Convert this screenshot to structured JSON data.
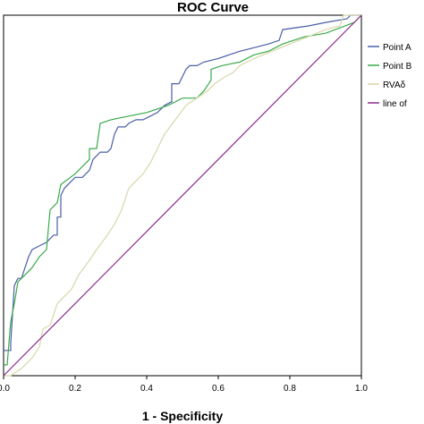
{
  "chart_data": {
    "type": "line",
    "title": "ROC Curve",
    "xlabel": "1 - Specificity",
    "ylabel": "",
    "xlim": [
      0,
      1
    ],
    "ylim": [
      0,
      1
    ],
    "x_ticks": [
      "0.0",
      "0.2",
      "0.4",
      "0.6",
      "0.8",
      "1.0"
    ],
    "legend_placement": "right",
    "series": [
      {
        "name": "Point A",
        "color": "#4a5fa8",
        "points": [
          [
            0,
            0.07
          ],
          [
            0.02,
            0.07
          ],
          [
            0.02,
            0.09
          ],
          [
            0.03,
            0.25
          ],
          [
            0.04,
            0.27
          ],
          [
            0.05,
            0.27
          ],
          [
            0.06,
            0.3
          ],
          [
            0.07,
            0.33
          ],
          [
            0.08,
            0.35
          ],
          [
            0.1,
            0.36
          ],
          [
            0.12,
            0.37
          ],
          [
            0.14,
            0.39
          ],
          [
            0.15,
            0.39
          ],
          [
            0.15,
            0.44
          ],
          [
            0.16,
            0.44
          ],
          [
            0.16,
            0.5
          ],
          [
            0.17,
            0.52
          ],
          [
            0.2,
            0.55
          ],
          [
            0.22,
            0.55
          ],
          [
            0.24,
            0.57
          ],
          [
            0.25,
            0.6
          ],
          [
            0.27,
            0.62
          ],
          [
            0.29,
            0.62
          ],
          [
            0.3,
            0.63
          ],
          [
            0.31,
            0.67
          ],
          [
            0.32,
            0.69
          ],
          [
            0.34,
            0.69
          ],
          [
            0.35,
            0.7
          ],
          [
            0.37,
            0.71
          ],
          [
            0.39,
            0.71
          ],
          [
            0.41,
            0.72
          ],
          [
            0.43,
            0.73
          ],
          [
            0.45,
            0.75
          ],
          [
            0.47,
            0.76
          ],
          [
            0.47,
            0.81
          ],
          [
            0.49,
            0.81
          ],
          [
            0.51,
            0.85
          ],
          [
            0.52,
            0.86
          ],
          [
            0.54,
            0.86
          ],
          [
            0.56,
            0.87
          ],
          [
            0.6,
            0.88
          ],
          [
            0.66,
            0.9
          ],
          [
            0.7,
            0.91
          ],
          [
            0.74,
            0.92
          ],
          [
            0.77,
            0.93
          ],
          [
            0.78,
            0.96
          ],
          [
            0.85,
            0.97
          ],
          [
            0.9,
            0.98
          ],
          [
            0.96,
            0.99
          ],
          [
            0.97,
            1.0
          ],
          [
            1,
            1
          ]
        ]
      },
      {
        "name": "Point B",
        "color": "#3aaa4a",
        "points": [
          [
            0,
            0.03
          ],
          [
            0.01,
            0.03
          ],
          [
            0.02,
            0.15
          ],
          [
            0.03,
            0.2
          ],
          [
            0.04,
            0.26
          ],
          [
            0.06,
            0.28
          ],
          [
            0.08,
            0.3
          ],
          [
            0.1,
            0.33
          ],
          [
            0.12,
            0.35
          ],
          [
            0.13,
            0.46
          ],
          [
            0.15,
            0.48
          ],
          [
            0.16,
            0.53
          ],
          [
            0.2,
            0.56
          ],
          [
            0.24,
            0.6
          ],
          [
            0.24,
            0.63
          ],
          [
            0.26,
            0.63
          ],
          [
            0.27,
            0.7
          ],
          [
            0.3,
            0.71
          ],
          [
            0.35,
            0.72
          ],
          [
            0.4,
            0.73
          ],
          [
            0.46,
            0.75
          ],
          [
            0.5,
            0.77
          ],
          [
            0.54,
            0.77
          ],
          [
            0.56,
            0.79
          ],
          [
            0.58,
            0.82
          ],
          [
            0.58,
            0.85
          ],
          [
            0.61,
            0.86
          ],
          [
            0.66,
            0.87
          ],
          [
            0.7,
            0.89
          ],
          [
            0.74,
            0.9
          ],
          [
            0.78,
            0.92
          ],
          [
            0.84,
            0.94
          ],
          [
            0.9,
            0.95
          ],
          [
            0.98,
            0.98
          ],
          [
            1,
            1
          ]
        ]
      },
      {
        "name": "RVAδ",
        "color": "#d8d6a8",
        "points": [
          [
            0,
            0
          ],
          [
            0.02,
            0
          ],
          [
            0.05,
            0.02
          ],
          [
            0.08,
            0.05
          ],
          [
            0.1,
            0.08
          ],
          [
            0.11,
            0.13
          ],
          [
            0.13,
            0.14
          ],
          [
            0.15,
            0.2
          ],
          [
            0.17,
            0.22
          ],
          [
            0.19,
            0.24
          ],
          [
            0.21,
            0.28
          ],
          [
            0.24,
            0.32
          ],
          [
            0.26,
            0.35
          ],
          [
            0.29,
            0.39
          ],
          [
            0.31,
            0.42
          ],
          [
            0.33,
            0.46
          ],
          [
            0.35,
            0.52
          ],
          [
            0.36,
            0.53
          ],
          [
            0.39,
            0.56
          ],
          [
            0.41,
            0.59
          ],
          [
            0.43,
            0.63
          ],
          [
            0.45,
            0.67
          ],
          [
            0.48,
            0.71
          ],
          [
            0.51,
            0.75
          ],
          [
            0.54,
            0.77
          ],
          [
            0.57,
            0.79
          ],
          [
            0.59,
            0.81
          ],
          [
            0.62,
            0.83
          ],
          [
            0.64,
            0.84
          ],
          [
            0.66,
            0.86
          ],
          [
            0.7,
            0.88
          ],
          [
            0.75,
            0.9
          ],
          [
            0.8,
            0.92
          ],
          [
            0.85,
            0.94
          ],
          [
            0.9,
            0.96
          ],
          [
            0.94,
            0.97
          ],
          [
            0.95,
            1.0
          ],
          [
            1,
            1
          ]
        ]
      },
      {
        "name": "line of",
        "color": "#8b2a8b",
        "points": [
          [
            0,
            0
          ],
          [
            1,
            1
          ]
        ]
      }
    ]
  }
}
